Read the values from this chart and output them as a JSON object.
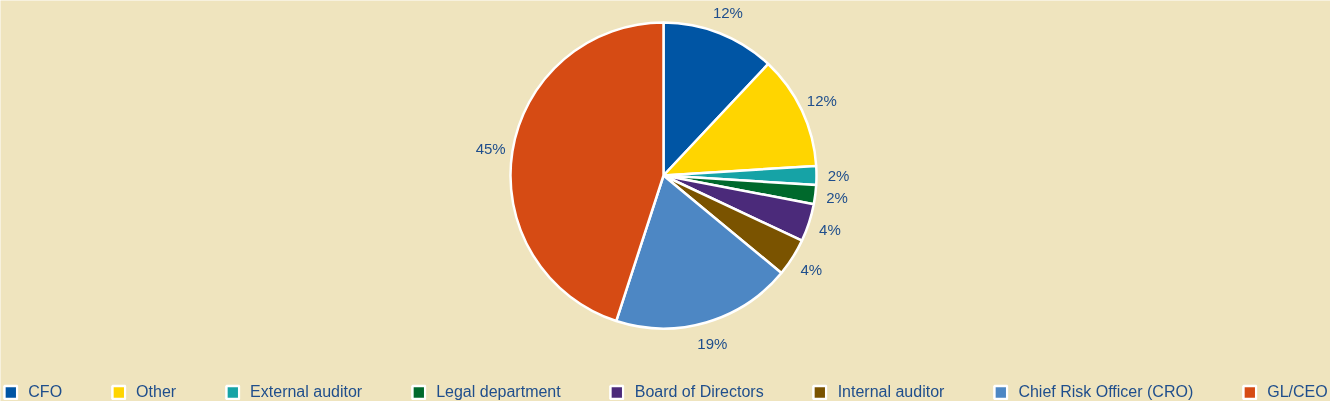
{
  "chart_data": {
    "type": "pie",
    "categories": [
      "CFO",
      "Other",
      "External auditor",
      "Legal department",
      "Board of Directors",
      "Internal auditor",
      "Chief Risk Officer (CRO)",
      "GL/CEO"
    ],
    "values": [
      12,
      12,
      2,
      2,
      4,
      4,
      19,
      45
    ],
    "colors": [
      "#0055a4",
      "#ffd500",
      "#16a3a6",
      "#00692c",
      "#4b2a7a",
      "#7a5300",
      "#4d87c4",
      "#d64b14"
    ],
    "value_labels": [
      "12%",
      "12%",
      "2%",
      "2%",
      "4%",
      "4%",
      "19%",
      "45%"
    ],
    "legend": "bottom"
  }
}
